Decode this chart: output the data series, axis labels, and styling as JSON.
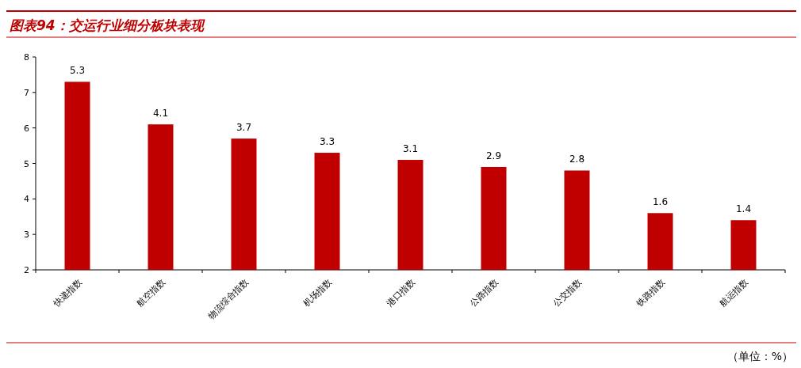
{
  "chart_data": {
    "type": "bar",
    "title": "图表94：交运行业细分板块表现",
    "categories": [
      "快递指数",
      "航空指数",
      "物流综合指数",
      "机场指数",
      "港口指数",
      "公路指数",
      "公交指数",
      "铁路指数",
      "航运指数"
    ],
    "values": [
      5.3,
      4.1,
      3.7,
      3.3,
      3.1,
      2.9,
      2.8,
      1.6,
      1.4
    ],
    "base": [
      2,
      2,
      2,
      2,
      2,
      2,
      2,
      2,
      2
    ],
    "color": "#c00000",
    "ylim": [
      2,
      8
    ],
    "yticks": [
      2,
      3,
      4,
      5,
      6,
      7,
      8
    ],
    "data_labels": true,
    "annotations": [
      "（单位：%）"
    ]
  }
}
